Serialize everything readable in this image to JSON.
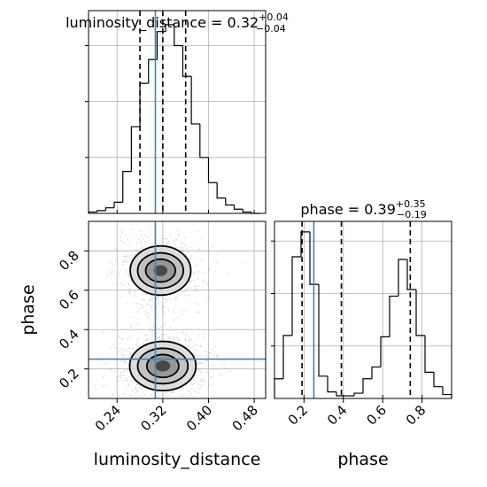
{
  "params": {
    "p0": {
      "name": "luminosity_distance",
      "median": "0.32",
      "plus": "+0.04",
      "minus": "−0.04",
      "quantiles": [
        0.28,
        0.32,
        0.36
      ],
      "truth": 0.307,
      "range": [
        0.19,
        0.5
      ],
      "ticks": [
        {
          "v": 0.24,
          "label": "0.24"
        },
        {
          "v": 0.32,
          "label": "0.32"
        },
        {
          "v": 0.4,
          "label": "0.40"
        },
        {
          "v": 0.48,
          "label": "0.48"
        }
      ]
    },
    "p1": {
      "name": "phase",
      "median": "0.39",
      "plus": "+0.35",
      "minus": "−0.19",
      "quantiles": [
        0.19,
        0.39,
        0.74
      ],
      "truth": 0.25,
      "range": [
        0.05,
        0.95
      ],
      "ticks": [
        {
          "v": 0.2,
          "label": "0.2"
        },
        {
          "v": 0.4,
          "label": "0.4"
        },
        {
          "v": 0.6,
          "label": "0.6"
        },
        {
          "v": 0.8,
          "label": "0.8"
        }
      ]
    }
  },
  "colors": {
    "truth": "#4682b4",
    "hist": "#000000",
    "grid": "#b0b0b0",
    "contour": "#000000"
  },
  "chart_data": [
    {
      "type": "histogram",
      "panel": "luminosity_distance marginal",
      "title": "luminosity_distance = 0.32 (+0.04 / −0.04)",
      "bins": [
        0.19,
        0.205,
        0.22,
        0.235,
        0.25,
        0.265,
        0.28,
        0.295,
        0.31,
        0.325,
        0.34,
        0.355,
        0.37,
        0.385,
        0.4,
        0.415,
        0.43,
        0.445,
        0.46,
        0.475,
        0.49
      ],
      "values": [
        1,
        2,
        4,
        8,
        30,
        62,
        93,
        110,
        130,
        135,
        120,
        98,
        64,
        40,
        22,
        11,
        6,
        3,
        1,
        0
      ],
      "ylim": [
        0,
        145
      ],
      "grid": true
    },
    {
      "type": "histogram",
      "panel": "phase marginal",
      "title": "phase = 0.39 (+0.35 / −0.19)",
      "bins": [
        0.05,
        0.095,
        0.14,
        0.185,
        0.23,
        0.275,
        0.32,
        0.365,
        0.41,
        0.455,
        0.5,
        0.545,
        0.59,
        0.635,
        0.68,
        0.725,
        0.77,
        0.815,
        0.86,
        0.905,
        0.95
      ],
      "values": [
        15,
        48,
        108,
        127,
        87,
        17,
        5,
        2,
        2,
        4,
        15,
        24,
        47,
        78,
        106,
        83,
        48,
        20,
        9,
        3
      ],
      "ylim": [
        0,
        135
      ],
      "grid": true
    },
    {
      "type": "contour",
      "panel": "phase vs luminosity_distance",
      "xlabel": "luminosity_distance",
      "ylabel": "phase",
      "xlim": [
        0.19,
        0.5
      ],
      "ylim": [
        0.05,
        0.95
      ],
      "modes": [
        {
          "cx": 0.316,
          "cy": 0.7,
          "levels": [
            {
              "rx": 0.053,
              "ry": 0.125
            },
            {
              "rx": 0.04,
              "ry": 0.09
            },
            {
              "rx": 0.026,
              "ry": 0.058
            },
            {
              "rx": 0.012,
              "ry": 0.028
            }
          ]
        },
        {
          "cx": 0.32,
          "cy": 0.215,
          "levels": [
            {
              "rx": 0.058,
              "ry": 0.125
            },
            {
              "rx": 0.044,
              "ry": 0.09
            },
            {
              "rx": 0.028,
              "ry": 0.058
            },
            {
              "rx": 0.013,
              "ry": 0.028
            }
          ]
        }
      ],
      "truth": {
        "x": 0.307,
        "y": 0.25
      }
    }
  ]
}
